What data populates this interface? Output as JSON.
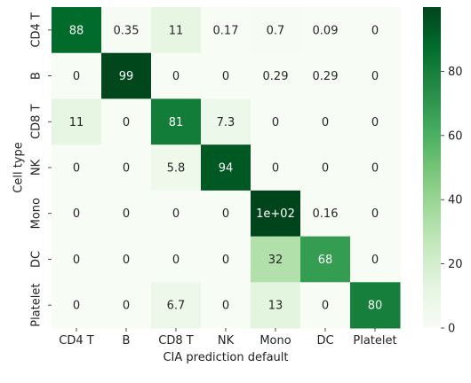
{
  "chart_data": {
    "type": "heatmap",
    "title": "",
    "xlabel": "CIA prediction default",
    "ylabel": "Cell type",
    "x_categories": [
      "CD4 T",
      "B",
      "CD8 T",
      "NK",
      "Mono",
      "DC",
      "Platelet"
    ],
    "y_categories": [
      "CD4 T",
      "B",
      "CD8 T",
      "NK",
      "Mono",
      "DC",
      "Platelet"
    ],
    "values": [
      [
        88,
        0.35,
        11,
        0.17,
        0.7,
        0.09,
        0
      ],
      [
        0,
        99,
        0,
        0,
        0.29,
        0.29,
        0
      ],
      [
        11,
        0,
        81,
        7.3,
        0,
        0,
        0
      ],
      [
        0,
        0,
        5.8,
        94,
        0,
        0,
        0
      ],
      [
        0,
        0,
        0,
        0,
        100,
        0.16,
        0
      ],
      [
        0,
        0,
        0,
        0,
        32,
        68,
        0
      ],
      [
        0,
        0,
        6.7,
        0,
        13,
        0,
        80
      ]
    ],
    "cell_labels": [
      [
        "88",
        "0.35",
        "11",
        "0.17",
        "0.7",
        "0.09",
        "0"
      ],
      [
        "0",
        "99",
        "0",
        "0",
        "0.29",
        "0.29",
        "0"
      ],
      [
        "11",
        "0",
        "81",
        "7.3",
        "0",
        "0",
        "0"
      ],
      [
        "0",
        "0",
        "5.8",
        "94",
        "0",
        "0",
        "0"
      ],
      [
        "0",
        "0",
        "0",
        "0",
        "1e+02",
        "0.16",
        "0"
      ],
      [
        "0",
        "0",
        "0",
        "0",
        "32",
        "68",
        "0"
      ],
      [
        "0",
        "0",
        "6.7",
        "0",
        "13",
        "0",
        "80"
      ]
    ],
    "colormap": "Greens",
    "value_range": [
      0,
      100
    ],
    "colorbar_ticks": [
      0,
      20,
      40,
      60,
      80
    ],
    "colorbar_tick_labels": [
      "0",
      "20",
      "40",
      "60",
      "80"
    ],
    "colors": {
      "low": "#f7fcf5",
      "high": "#00441b",
      "text_dark": "#262626",
      "text_light": "#ffffff"
    }
  }
}
